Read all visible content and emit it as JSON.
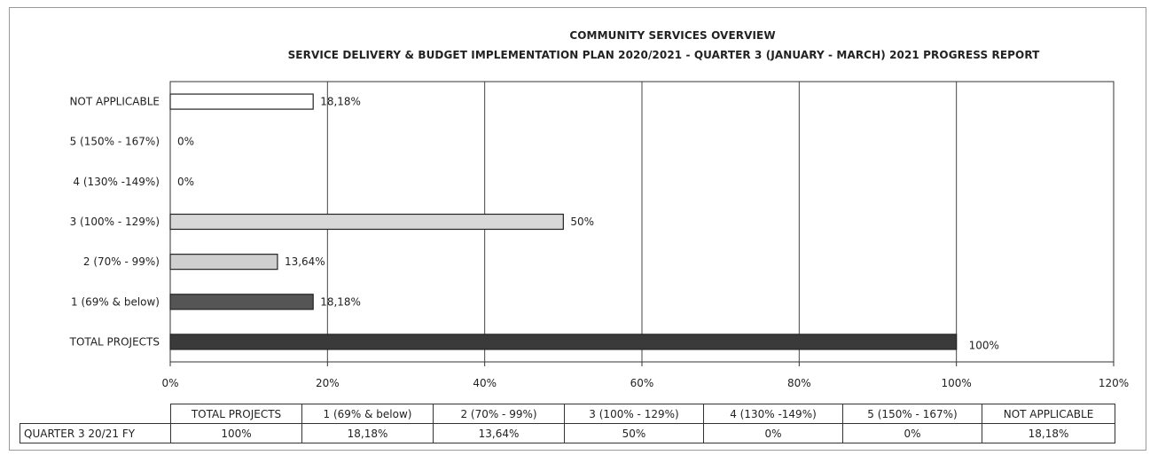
{
  "chart_data": {
    "type": "bar",
    "orientation": "horizontal",
    "title": "COMMUNITY SERVICES OVERVIEW",
    "subtitle": "SERVICE DELIVERY & BUDGET IMPLEMENTATION PLAN 2020/2021 - QUARTER 3 (JANUARY - MARCH) 2021 PROGRESS REPORT",
    "categories": [
      "NOT APPLICABLE",
      "5 (150% - 167%)",
      "4 (130% -149%)",
      "3 (100% - 129%)",
      "2 (70% - 99%)",
      "1 (69% & below)",
      "TOTAL PROJECTS"
    ],
    "values": [
      18.18,
      0,
      0,
      50,
      13.64,
      18.18,
      100
    ],
    "data_labels": [
      "18,18%",
      "0%",
      "0%",
      "50%",
      "13,64%",
      "18,18%",
      "100%"
    ],
    "bar_colors": [
      "#ffffff",
      "#ffffff",
      "#ffffff",
      "#d8d8d8",
      "#cfcfcf",
      "#555555",
      "#3a3a3a"
    ],
    "xlim": [
      0,
      120
    ],
    "x_ticks": [
      "0%",
      "20%",
      "40%",
      "60%",
      "80%",
      "100%",
      "120%"
    ],
    "x_tick_values": [
      0,
      20,
      40,
      60,
      80,
      100,
      120
    ],
    "grid": true,
    "xlabel": "",
    "ylabel": ""
  },
  "table": {
    "headers": [
      "TOTAL PROJECTS",
      "1 (69% & below)",
      "2 (70% - 99%)",
      "3 (100% - 129%)",
      "4 (130% -149%)",
      "5 (150% - 167%)",
      "NOT APPLICABLE"
    ],
    "row_label": "QUARTER 3 20/21 FY",
    "row_values": [
      "100%",
      "18,18%",
      "13,64%",
      "50%",
      "0%",
      "0%",
      "18,18%"
    ]
  }
}
